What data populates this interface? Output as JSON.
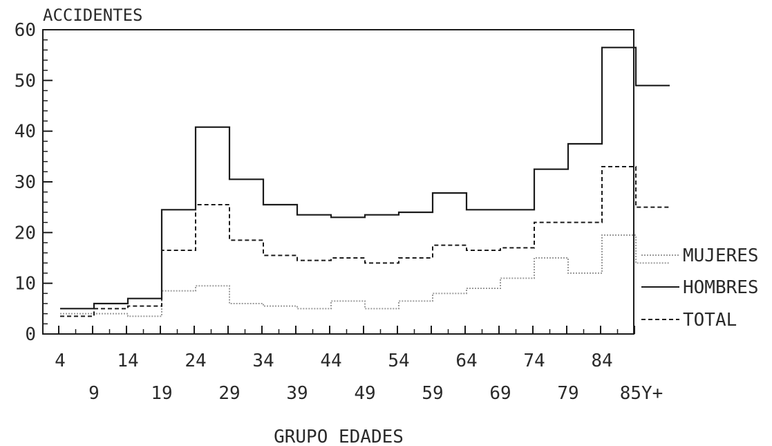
{
  "chart_data": {
    "type": "line",
    "ylabel": "ACCIDENTES",
    "xlabel": "GRUPO EDADES",
    "ylim": [
      0,
      60
    ],
    "yticks": [
      "0",
      "10",
      "20",
      "30",
      "40",
      "50",
      "60"
    ],
    "categories": [
      "4",
      "9",
      "14",
      "19",
      "24",
      "29",
      "34",
      "39",
      "44",
      "49",
      "54",
      "59",
      "64",
      "69",
      "74",
      "79",
      "84",
      "85Y+"
    ],
    "series": [
      {
        "name": "MUJERES",
        "color": "#9a9a9a",
        "style": "dotted",
        "values": [
          4,
          4,
          3.5,
          8.5,
          9.5,
          6,
          5.5,
          5,
          6.5,
          5,
          6.5,
          8,
          9,
          11,
          15,
          12,
          19.5,
          14
        ]
      },
      {
        "name": "HOMBRES",
        "color": "#1a1a1a",
        "style": "solid",
        "values": [
          5,
          6,
          7,
          24.5,
          40.8,
          30.5,
          25.5,
          23.5,
          23,
          23.5,
          24,
          27.8,
          24.5,
          24.5,
          32.5,
          37.5,
          56.5,
          49
        ]
      },
      {
        "name": "TOTAL",
        "color": "#1a1a1a",
        "style": "dashed",
        "values": [
          3.5,
          5,
          5.5,
          16.5,
          25.5,
          18.5,
          15.5,
          14.5,
          15,
          14,
          15,
          17.5,
          16.5,
          17,
          22,
          22,
          33,
          25
        ]
      }
    ],
    "legend_position": "right",
    "grid": false
  }
}
